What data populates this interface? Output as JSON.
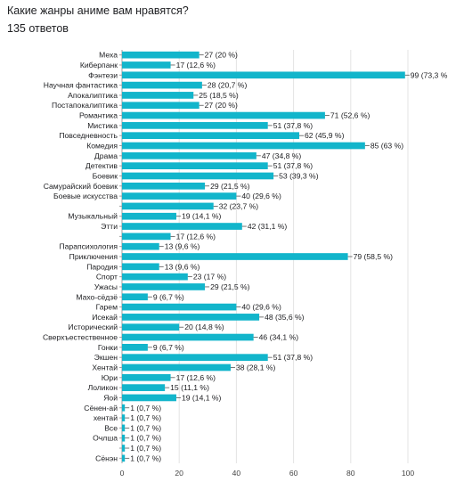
{
  "header": {
    "question": "Какие жанры аниме вам нравятся?",
    "responses": "135 ответов"
  },
  "colors": {
    "bar": "#12B5CB",
    "grid": "#e3e3e3",
    "axis": "#9e9e9e",
    "text": "#202124"
  },
  "chart_data": {
    "type": "bar",
    "orientation": "horizontal",
    "title": "Какие жанры аниме вам нравятся?",
    "subtitle": "135 ответов",
    "xlim": [
      0,
      100
    ],
    "xticks": [
      "0",
      "20",
      "40",
      "60",
      "80",
      "100"
    ],
    "grid": true,
    "categories": [
      "Меха",
      "Киберпанк",
      "Фэнтези",
      "Научная фантастика",
      "Апокалиптика",
      "Постапокалиптика",
      "Романтика",
      "Мистика",
      "Повседневность",
      "Комедия",
      "Драма",
      "Детектив",
      "Боевик",
      "Самурайский боевик",
      "Боевые искусства",
      "",
      "Музыкальный",
      "Этти",
      "",
      "Парапсихология",
      "Приключения",
      "Пародия",
      "Спорт",
      "Ужасы",
      "Махо-сёдзё",
      "Гарем",
      "Исекай",
      "Исторический",
      "Сверхъестественное",
      "Гонки",
      "Экшен",
      "Хентай",
      "Юри",
      "Лоликон",
      "Яой",
      "Сёнен-ай",
      "хентай",
      "Все",
      "Очлша",
      "",
      "Сёнэн"
    ],
    "values": [
      27,
      17,
      99,
      28,
      25,
      27,
      71,
      51,
      62,
      85,
      47,
      51,
      53,
      29,
      40,
      32,
      19,
      42,
      17,
      13,
      79,
      13,
      23,
      29,
      9,
      40,
      48,
      20,
      46,
      9,
      51,
      38,
      17,
      15,
      19,
      1,
      1,
      1,
      1,
      1,
      1
    ],
    "labels": [
      "27 (20 %)",
      "17 (12,6 %)",
      "99 (73,3 %",
      "28 (20,7 %)",
      "25 (18,5 %)",
      "27 (20 %)",
      "71 (52,6 %)",
      "51 (37,8 %)",
      "62 (45,9 %)",
      "85 (63 %)",
      "47 (34,8 %)",
      "51 (37,8 %)",
      "53 (39,3 %)",
      "29 (21,5 %)",
      "40 (29,6 %)",
      "32 (23,7 %)",
      "19 (14,1 %)",
      "42 (31,1 %)",
      "17 (12,6 %)",
      "13 (9,6 %)",
      "79 (58,5 %)",
      "13 (9,6 %)",
      "23 (17 %)",
      "29 (21,5 %)",
      "9 (6,7 %)",
      "40 (29,6 %)",
      "48 (35,6 %)",
      "20 (14,8 %)",
      "46 (34,1 %)",
      "9 (6,7 %)",
      "51 (37,8 %)",
      "38 (28,1 %)",
      "17 (12,6 %)",
      "15 (11,1 %)",
      "19 (14,1 %)",
      "1 (0,7 %)",
      "1 (0,7 %)",
      "1 (0,7 %)",
      "1 (0,7 %)",
      "1 (0,7 %)",
      "1 (0,7 %)"
    ]
  }
}
